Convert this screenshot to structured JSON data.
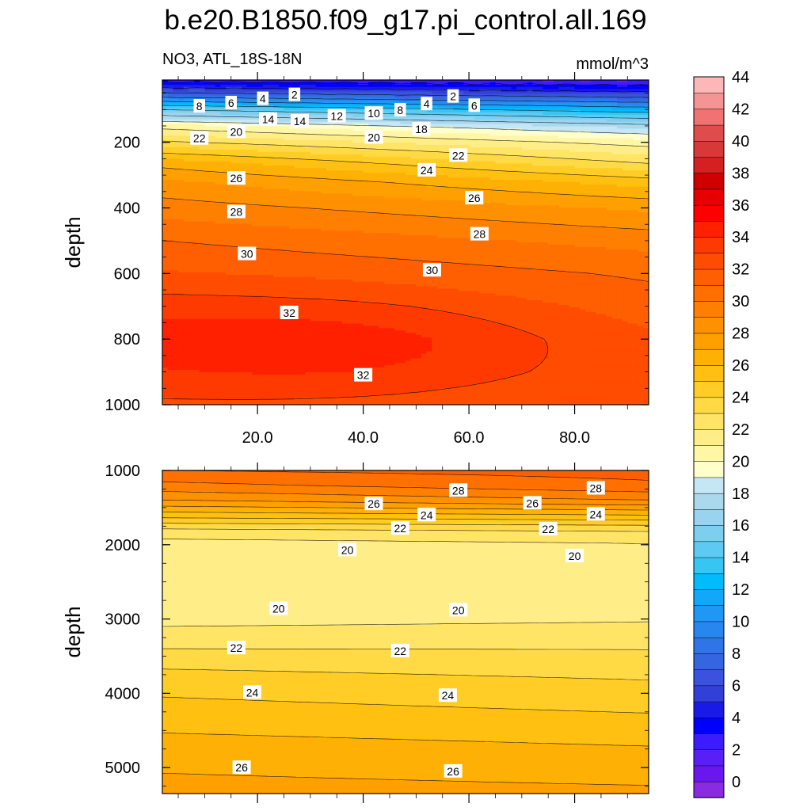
{
  "title": "b.e20.B1850.f09_g17.pi_control.all.169",
  "chart_data": [
    {
      "type": "contour",
      "panel": "upper",
      "subtitle_left": "NO3, ATL_18S-18N",
      "subtitle_right": "mmol/m^3",
      "ylabel": "depth",
      "xlim": [
        2,
        94
      ],
      "ylim": [
        1000,
        10
      ],
      "y_reversed": true,
      "x_ticks": [
        "20.0",
        "40.0",
        "60.0",
        "80.0"
      ],
      "x_tick_values": [
        20,
        40,
        60,
        80
      ],
      "y_ticks": [
        "200",
        "400",
        "600",
        "800",
        "1000"
      ],
      "y_tick_values": [
        200,
        400,
        600,
        800,
        1000
      ],
      "contour_interval": 2,
      "profile_depths": [
        10,
        30,
        60,
        100,
        150,
        200,
        260,
        320,
        400,
        500,
        600,
        700,
        800,
        900,
        1000
      ],
      "profile_left_x2": [
        1.5,
        3.5,
        7.5,
        14,
        19.5,
        22.2,
        25.5,
        27.2,
        28.5,
        30,
        31,
        32.1,
        32.6,
        32.2,
        31.6
      ],
      "profile_right_x94": [
        0.8,
        2.2,
        5.5,
        11,
        16.5,
        19.5,
        21.8,
        24.5,
        26.8,
        28.6,
        29.8,
        30.4,
        30.9,
        31.1,
        31.0
      ],
      "contour_labels": [
        {
          "text": "8",
          "x": 9,
          "y": 90
        },
        {
          "text": "6",
          "x": 15,
          "y": 80
        },
        {
          "text": "4",
          "x": 21,
          "y": 67
        },
        {
          "text": "2",
          "x": 27,
          "y": 55
        },
        {
          "text": "14",
          "x": 22,
          "y": 130
        },
        {
          "text": "14",
          "x": 28,
          "y": 135
        },
        {
          "text": "12",
          "x": 35,
          "y": 120
        },
        {
          "text": "10",
          "x": 42,
          "y": 112
        },
        {
          "text": "8",
          "x": 47,
          "y": 102
        },
        {
          "text": "4",
          "x": 52,
          "y": 83
        },
        {
          "text": "2",
          "x": 57,
          "y": 60
        },
        {
          "text": "6",
          "x": 61,
          "y": 88
        },
        {
          "text": "20",
          "x": 16,
          "y": 168
        },
        {
          "text": "22",
          "x": 9,
          "y": 188
        },
        {
          "text": "20",
          "x": 42,
          "y": 185
        },
        {
          "text": "18",
          "x": 51,
          "y": 160
        },
        {
          "text": "22",
          "x": 58,
          "y": 240
        },
        {
          "text": "24",
          "x": 52,
          "y": 285
        },
        {
          "text": "26",
          "x": 16,
          "y": 310
        },
        {
          "text": "26",
          "x": 61,
          "y": 370
        },
        {
          "text": "28",
          "x": 16,
          "y": 412
        },
        {
          "text": "28",
          "x": 62,
          "y": 480
        },
        {
          "text": "30",
          "x": 18,
          "y": 540
        },
        {
          "text": "30",
          "x": 53,
          "y": 590
        },
        {
          "text": "32",
          "x": 26,
          "y": 720
        },
        {
          "text": "32",
          "x": 40,
          "y": 910
        }
      ]
    },
    {
      "type": "contour",
      "panel": "lower",
      "ylabel": "depth",
      "xlim": [
        2,
        94
      ],
      "ylim": [
        5350,
        1000
      ],
      "y_reversed": true,
      "y_ticks": [
        "1000",
        "2000",
        "3000",
        "4000",
        "5000"
      ],
      "y_tick_values": [
        1000,
        2000,
        3000,
        4000,
        5000
      ],
      "contour_interval": 1,
      "profile_depths": [
        1000,
        1200,
        1400,
        1600,
        1800,
        2000,
        2500,
        3000,
        3300,
        3600,
        4000,
        4400,
        4800,
        5350
      ],
      "profile_left_x2": [
        30,
        28.7,
        27.0,
        24.5,
        21.8,
        20.5,
        20.2,
        20.7,
        21.6,
        22.8,
        23.9,
        24.7,
        25.6,
        26.4
      ],
      "profile_right_x94": [
        30.4,
        29.8,
        28.0,
        25.0,
        22.1,
        20.9,
        20.5,
        20.9,
        21.7,
        22.5,
        23.4,
        24.3,
        25.2,
        26.2
      ],
      "contour_labels": [
        {
          "text": "26",
          "x": 42,
          "y": 1450
        },
        {
          "text": "28",
          "x": 58,
          "y": 1270
        },
        {
          "text": "24",
          "x": 52,
          "y": 1600
        },
        {
          "text": "26",
          "x": 72,
          "y": 1440
        },
        {
          "text": "28",
          "x": 84,
          "y": 1240
        },
        {
          "text": "24",
          "x": 84,
          "y": 1590
        },
        {
          "text": "22",
          "x": 47,
          "y": 1780
        },
        {
          "text": "22",
          "x": 75,
          "y": 1790
        },
        {
          "text": "20",
          "x": 37,
          "y": 2070
        },
        {
          "text": "20",
          "x": 80,
          "y": 2150
        },
        {
          "text": "20",
          "x": 24,
          "y": 2860
        },
        {
          "text": "20",
          "x": 58,
          "y": 2880
        },
        {
          "text": "22",
          "x": 16,
          "y": 3390
        },
        {
          "text": "22",
          "x": 47,
          "y": 3430
        },
        {
          "text": "24",
          "x": 19,
          "y": 3990
        },
        {
          "text": "24",
          "x": 56,
          "y": 4030
        },
        {
          "text": "26",
          "x": 17,
          "y": 5000
        },
        {
          "text": "26",
          "x": 57,
          "y": 5050
        }
      ]
    }
  ],
  "colorbar": {
    "labels": [
      "0",
      "2",
      "4",
      "6",
      "8",
      "10",
      "12",
      "14",
      "16",
      "18",
      "20",
      "22",
      "24",
      "26",
      "28",
      "30",
      "32",
      "34",
      "36",
      "38",
      "40",
      "42",
      "44"
    ],
    "colors": [
      "#8a2be2",
      "#6a16ee",
      "#5a1ff6",
      "#3c1cff",
      "#0000ff",
      "#1a1ae8",
      "#3340d8",
      "#3a52de",
      "#3366e0",
      "#2f75e8",
      "#2787ef",
      "#1e97f5",
      "#11a8fa",
      "#00bcff",
      "#35c6f4",
      "#5ccaf2",
      "#7dcff0",
      "#98d4ef",
      "#aad9ee",
      "#c5e6f5",
      "#ffffcc",
      "#fff6a6",
      "#ffee88",
      "#ffe466",
      "#ffda44",
      "#ffcd26",
      "#ffc011",
      "#ffb005",
      "#ffa000",
      "#ff9000",
      "#ff8000",
      "#ff7000",
      "#ff5f00",
      "#ff4d00",
      "#ff3a00",
      "#ff2000",
      "#ff0000",
      "#e80000",
      "#d00000",
      "#d42020",
      "#d83838",
      "#e04b4b",
      "#f07272",
      "#f59494",
      "#fcb8b8"
    ]
  }
}
